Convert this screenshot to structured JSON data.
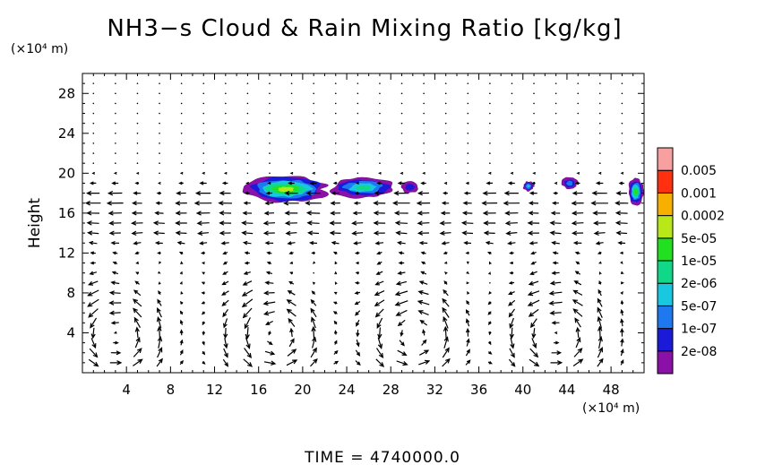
{
  "chart_data": {
    "type": "contour-vector",
    "title": "NH3−s Cloud & Rain Mixing Ratio [kg/kg]",
    "ylabel": "Height",
    "x_unit": "(×10⁴ m)",
    "y_unit": "(×10⁴ m)",
    "xlim": [
      0,
      51
    ],
    "ylim": [
      0,
      30
    ],
    "x_ticks": [
      4,
      8,
      12,
      16,
      20,
      24,
      28,
      32,
      36,
      40,
      44,
      48
    ],
    "y_ticks": [
      4,
      8,
      12,
      16,
      20,
      24,
      28
    ],
    "time_label": "TIME  =  4740000.0",
    "colorbar": {
      "levels": [
        "2e-08",
        "1e-07",
        "5e-07",
        "2e-06",
        "1e-05",
        "5e-05",
        "0.0002",
        "0.001",
        "0.005"
      ],
      "colors": [
        "#8B10A8",
        "#1A1AD8",
        "#1E78F0",
        "#18C8E0",
        "#10D888",
        "#20E020",
        "#B8E818",
        "#F8B000",
        "#FF3010",
        "#F8A0A0"
      ]
    },
    "cloud_patches": [
      {
        "x": [
          14.5,
          22.5
        ],
        "y": [
          17.0,
          19.8
        ],
        "peak": 6
      },
      {
        "x": [
          22.5,
          28.5
        ],
        "y": [
          17.5,
          19.6
        ],
        "peak": 4
      },
      {
        "x": [
          29.0,
          30.5
        ],
        "y": [
          18.0,
          19.2
        ],
        "peak": 1
      },
      {
        "x": [
          40.0,
          41.0
        ],
        "y": [
          18.2,
          19.2
        ],
        "peak": 3
      },
      {
        "x": [
          43.5,
          45.0
        ],
        "y": [
          18.4,
          19.6
        ],
        "peak": 2
      },
      {
        "x": [
          49.5,
          51.0
        ],
        "y": [
          16.8,
          19.5
        ],
        "peak": 5
      }
    ],
    "flow_features": {
      "lower_circulation_cells_x": [
        3,
        17.5,
        30,
        43
      ],
      "upper_outflow_height": 17.5,
      "mid_level_westward_height": 14.5
    }
  }
}
